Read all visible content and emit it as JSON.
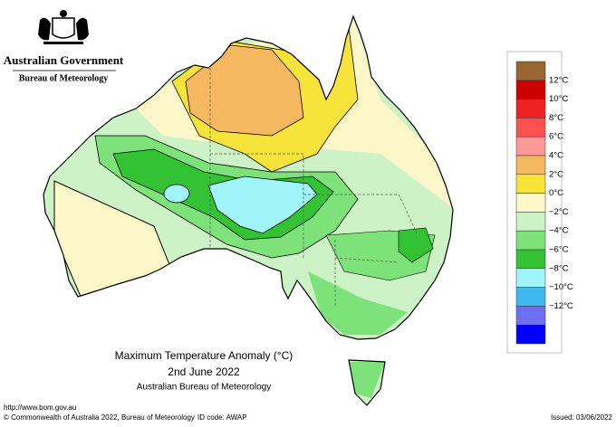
{
  "header": {
    "government": "Australian Government",
    "bureau": "Bureau of Meteorology"
  },
  "map": {
    "title": "Maximum Temperature Anomaly (°C)",
    "date": "2nd June 2022",
    "source": "Australian Bureau of Meteorology"
  },
  "legend": {
    "colors": [
      "#996633",
      "#cc0000",
      "#ee2222",
      "#ff5050",
      "#ff9999",
      "#f5b860",
      "#f7e43a",
      "#fbf7c8",
      "#cdf2c6",
      "#7ee27a",
      "#33c233",
      "#9ff5fa",
      "#3fb7ef",
      "#6f6ff2",
      "#0000ff"
    ],
    "labels": [
      "12°C",
      "10°C",
      "8°C",
      "6°C",
      "4°C",
      "2°C",
      "0°C",
      "−2°C",
      "−4°C",
      "−6°C",
      "−8°C",
      "−10°C",
      "−12°C"
    ]
  },
  "footer": {
    "url": "http://www.bom.gov.au",
    "copyright": "© Commonwealth of Australia 2022, Bureau of Meteorology",
    "id_code": "ID code: AWAP",
    "issued": "Issued: 03/06/2022"
  }
}
